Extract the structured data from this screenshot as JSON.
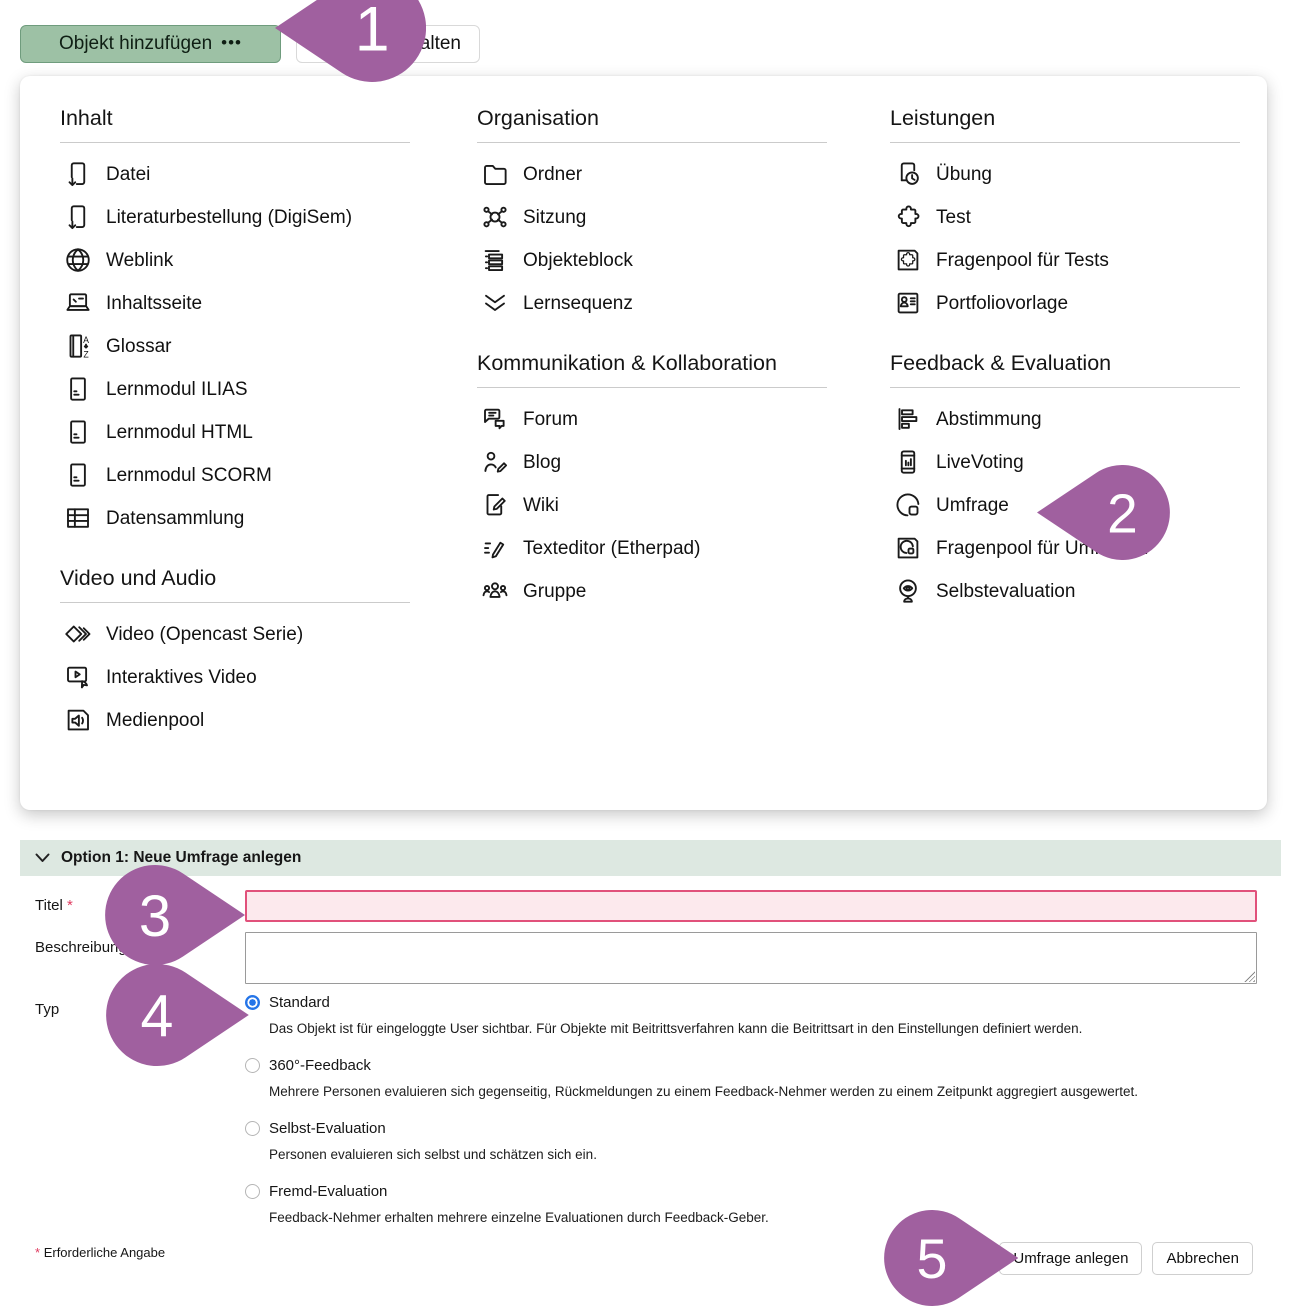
{
  "toolbar": {
    "add_object_label": "Objekt hinzufügen",
    "add_object_more": "•••",
    "secondary_button_visible_text": "alten"
  },
  "menu": {
    "columns": [
      {
        "sections": [
          {
            "title": "Inhalt",
            "items": [
              {
                "label": "Datei",
                "icon": "file-download-icon"
              },
              {
                "label": "Literaturbestellung (DigiSem)",
                "icon": "file-download-icon"
              },
              {
                "label": "Weblink",
                "icon": "globe-icon"
              },
              {
                "label": "Inhaltsseite",
                "icon": "content-page-icon"
              },
              {
                "label": "Glossar",
                "icon": "glossary-icon"
              },
              {
                "label": "Lernmodul ILIAS",
                "icon": "learning-module-icon"
              },
              {
                "label": "Lernmodul HTML",
                "icon": "learning-module-icon"
              },
              {
                "label": "Lernmodul SCORM",
                "icon": "learning-module-icon"
              },
              {
                "label": "Datensammlung",
                "icon": "table-icon"
              }
            ]
          },
          {
            "title": "Video und Audio",
            "items": [
              {
                "label": "Video (Opencast Serie)",
                "icon": "opencast-video-icon"
              },
              {
                "label": "Interaktives Video",
                "icon": "interactive-video-icon"
              },
              {
                "label": "Medienpool",
                "icon": "media-pool-icon"
              }
            ]
          }
        ]
      },
      {
        "sections": [
          {
            "title": "Organisation",
            "items": [
              {
                "label": "Ordner",
                "icon": "folder-icon"
              },
              {
                "label": "Sitzung",
                "icon": "session-icon"
              },
              {
                "label": "Objekteblock",
                "icon": "item-group-icon"
              },
              {
                "label": "Lernsequenz",
                "icon": "learning-sequence-icon"
              }
            ]
          },
          {
            "title": "Kommunikation & Kollaboration",
            "items": [
              {
                "label": "Forum",
                "icon": "forum-icon"
              },
              {
                "label": "Blog",
                "icon": "blog-icon"
              },
              {
                "label": "Wiki",
                "icon": "wiki-icon"
              },
              {
                "label": "Texteditor (Etherpad)",
                "icon": "text-editor-icon"
              },
              {
                "label": "Gruppe",
                "icon": "group-icon"
              }
            ]
          }
        ]
      },
      {
        "sections": [
          {
            "title": "Leistungen",
            "items": [
              {
                "label": "Übung",
                "icon": "exercise-icon"
              },
              {
                "label": "Test",
                "icon": "puzzle-icon"
              },
              {
                "label": "Fragenpool für Tests",
                "icon": "question-pool-test-icon"
              },
              {
                "label": "Portfoliovorlage",
                "icon": "portfolio-template-icon"
              }
            ]
          },
          {
            "title": "Feedback & Evaluation",
            "items": [
              {
                "label": "Abstimmung",
                "icon": "poll-bars-icon"
              },
              {
                "label": "LiveVoting",
                "icon": "live-voting-icon"
              },
              {
                "label": "Umfrage",
                "icon": "survey-icon"
              },
              {
                "label": "Fragenpool für Umfragen",
                "icon": "question-pool-survey-icon"
              },
              {
                "label": "Selbstevaluation",
                "icon": "self-evaluation-icon"
              }
            ]
          }
        ]
      }
    ]
  },
  "annotations": {
    "bubbles": [
      {
        "number": "1",
        "direction": "left"
      },
      {
        "number": "2",
        "direction": "left"
      },
      {
        "number": "3",
        "direction": "right"
      },
      {
        "number": "4",
        "direction": "right"
      },
      {
        "number": "5",
        "direction": "right"
      }
    ]
  },
  "form": {
    "section_header": "Option 1: Neue Umfrage anlegen",
    "fields": {
      "title": {
        "label": "Titel",
        "required_marker": "*",
        "value": ""
      },
      "description": {
        "label": "Beschreibung",
        "value": ""
      },
      "type": {
        "label": "Typ",
        "options": [
          {
            "label": "Standard",
            "selected": true,
            "description": "Das Objekt ist für eingeloggte User sichtbar. Für Objekte mit Beitrittsverfahren kann die Beitrittsart in den Einstellungen definiert werden."
          },
          {
            "label": "360°-Feedback",
            "selected": false,
            "description": "Mehrere Personen evaluieren sich gegenseitig, Rückmeldungen zu einem Feedback-Nehmer werden zu einem Zeitpunkt aggregiert ausgewertet."
          },
          {
            "label": "Selbst-Evaluation",
            "selected": false,
            "description": "Personen evaluieren sich selbst und schätzen sich ein."
          },
          {
            "label": "Fremd-Evaluation",
            "selected": false,
            "description": "Feedback-Nehmer erhalten mehrere einzelne Evaluationen durch Feedback-Geber."
          }
        ]
      }
    },
    "footer": {
      "required_note_marker": "*",
      "required_note": "Erforderliche Angabe",
      "submit_label": "Umfrage anlegen",
      "cancel_label": "Abbrechen"
    }
  },
  "colors": {
    "button_green": "#9dc1a5",
    "bubble_purple": "#a0609f",
    "error_bg": "#fce9ed",
    "error_border": "#e1517b",
    "radio_selected": "#2575e8",
    "section_header_bg": "#dde8e1",
    "asterisk_red": "#e03a5f"
  }
}
